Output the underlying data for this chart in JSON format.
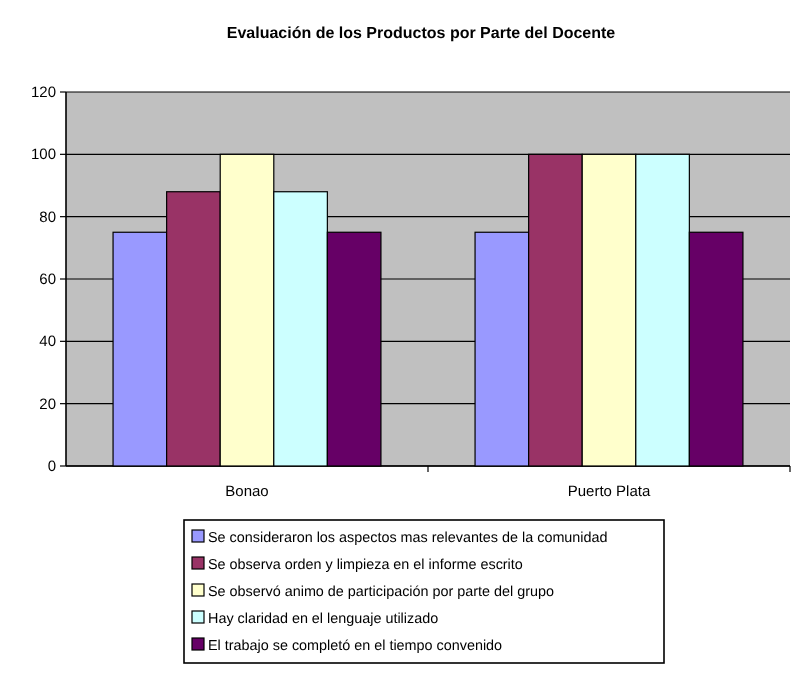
{
  "chart_data": {
    "type": "bar",
    "title": "Evaluación de los Productos por Parte del Docente",
    "categories": [
      "Bonao",
      "Puerto Plata"
    ],
    "series": [
      {
        "name": "Se consideraron los aspectos mas relevantes de la comunidad",
        "color": "#9999ff",
        "values": [
          75,
          75
        ]
      },
      {
        "name": "Se observa orden y limpieza en el informe escrito",
        "color": "#993366",
        "values": [
          88,
          100
        ]
      },
      {
        "name": "Se observó animo de participación por parte del grupo",
        "color": "#ffffcc",
        "values": [
          100,
          100
        ]
      },
      {
        "name": "Hay claridad en el lenguaje utilizado",
        "color": "#ccffff",
        "values": [
          88,
          100
        ]
      },
      {
        "name": "El trabajo se completó en el tiempo convenido",
        "color": "#660066",
        "values": [
          75,
          75
        ]
      }
    ],
    "ylim": [
      0,
      120
    ],
    "yticks": [
      0,
      20,
      40,
      60,
      80,
      100,
      120
    ],
    "grid": "y",
    "legend": "bottom"
  }
}
